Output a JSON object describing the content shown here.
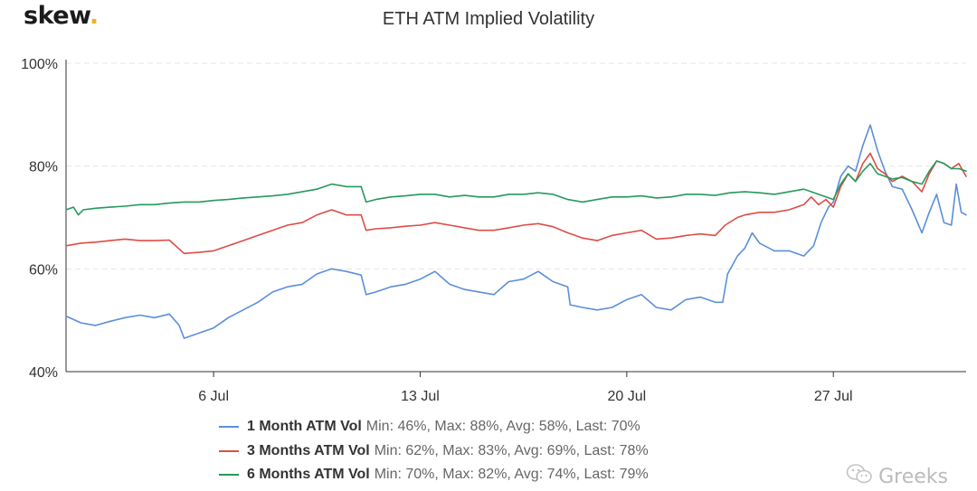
{
  "logo": {
    "text": "skew",
    "dot": "."
  },
  "watermark": {
    "text": "Greeks",
    "icon": "wechat-icon"
  },
  "colors": {
    "1m": "#5b8fd9",
    "3m": "#dd4d44",
    "6m": "#259a5b",
    "grid": "#e6e6e6",
    "axis": "#333333",
    "logo_dot": "#f0b323"
  },
  "chart_data": {
    "type": "line",
    "title": "ETH ATM Implied Volatility",
    "xlabel": "",
    "ylabel": "",
    "x_range": [
      "2020-07-01",
      "2020-07-31"
    ],
    "ylim": [
      40,
      100
    ],
    "yticks": [
      "40%",
      "60%",
      "80%",
      "100%"
    ],
    "xticks": [
      {
        "date": "2020-07-06",
        "label": "6 Jul"
      },
      {
        "date": "2020-07-13",
        "label": "13 Jul"
      },
      {
        "date": "2020-07-20",
        "label": "20 Jul"
      },
      {
        "date": "2020-07-27",
        "label": "27 Jul"
      }
    ],
    "grid": "horizontal-dashed",
    "legend_position": "bottom",
    "series": [
      {
        "key": "1m",
        "name": "1 Month ATM Vol",
        "stats": "Min: 46%, Max: 88%, Avg: 58%, Last: 70%",
        "points": [
          [
            "2020-07-01",
            50.8
          ],
          [
            "2020-07-01T12:00",
            49.5
          ],
          [
            "2020-07-02",
            49.0
          ],
          [
            "2020-07-02T12:00",
            49.8
          ],
          [
            "2020-07-03",
            50.5
          ],
          [
            "2020-07-03T12:00",
            51.0
          ],
          [
            "2020-07-04",
            50.5
          ],
          [
            "2020-07-04T12:00",
            51.2
          ],
          [
            "2020-07-04T20:00",
            49.0
          ],
          [
            "2020-07-05",
            46.5
          ],
          [
            "2020-07-05T12:00",
            47.5
          ],
          [
            "2020-07-06",
            48.5
          ],
          [
            "2020-07-06T12:00",
            50.5
          ],
          [
            "2020-07-07",
            52.0
          ],
          [
            "2020-07-07T12:00",
            53.5
          ],
          [
            "2020-07-08",
            55.5
          ],
          [
            "2020-07-08T12:00",
            56.5
          ],
          [
            "2020-07-09",
            57.0
          ],
          [
            "2020-07-09T12:00",
            59.0
          ],
          [
            "2020-07-10",
            60.0
          ],
          [
            "2020-07-10T12:00",
            59.5
          ],
          [
            "2020-07-11",
            58.8
          ],
          [
            "2020-07-11T04:00",
            55.0
          ],
          [
            "2020-07-11T12:00",
            55.5
          ],
          [
            "2020-07-12",
            56.5
          ],
          [
            "2020-07-12T12:00",
            57.0
          ],
          [
            "2020-07-13",
            58.0
          ],
          [
            "2020-07-13T12:00",
            59.5
          ],
          [
            "2020-07-14",
            57.0
          ],
          [
            "2020-07-14T12:00",
            56.0
          ],
          [
            "2020-07-15",
            55.5
          ],
          [
            "2020-07-15T12:00",
            55.0
          ],
          [
            "2020-07-16",
            57.5
          ],
          [
            "2020-07-16T12:00",
            58.0
          ],
          [
            "2020-07-17",
            59.5
          ],
          [
            "2020-07-17T12:00",
            57.5
          ],
          [
            "2020-07-18",
            56.5
          ],
          [
            "2020-07-18T02:00",
            53.0
          ],
          [
            "2020-07-18T12:00",
            52.5
          ],
          [
            "2020-07-19",
            52.0
          ],
          [
            "2020-07-19T12:00",
            52.5
          ],
          [
            "2020-07-20",
            54.0
          ],
          [
            "2020-07-20T12:00",
            55.0
          ],
          [
            "2020-07-21",
            52.5
          ],
          [
            "2020-07-21T12:00",
            52.0
          ],
          [
            "2020-07-22",
            54.0
          ],
          [
            "2020-07-22T12:00",
            54.5
          ],
          [
            "2020-07-23",
            53.5
          ],
          [
            "2020-07-23T06:00",
            53.5
          ],
          [
            "2020-07-23T10:00",
            59.0
          ],
          [
            "2020-07-23T18:00",
            62.5
          ],
          [
            "2020-07-24",
            64.0
          ],
          [
            "2020-07-24T06:00",
            67.0
          ],
          [
            "2020-07-24T12:00",
            65.0
          ],
          [
            "2020-07-25",
            63.5
          ],
          [
            "2020-07-25T12:00",
            63.5
          ],
          [
            "2020-07-26",
            62.5
          ],
          [
            "2020-07-26T08:00",
            64.5
          ],
          [
            "2020-07-26T14:00",
            69.0
          ],
          [
            "2020-07-26T20:00",
            72.0
          ],
          [
            "2020-07-27",
            73.0
          ],
          [
            "2020-07-27T06:00",
            78.0
          ],
          [
            "2020-07-27T12:00",
            80.0
          ],
          [
            "2020-07-27T18:00",
            79.0
          ],
          [
            "2020-07-28",
            84.0
          ],
          [
            "2020-07-28T06:00",
            88.0
          ],
          [
            "2020-07-28T12:00",
            83.0
          ],
          [
            "2020-07-28T18:00",
            79.0
          ],
          [
            "2020-07-29",
            76.0
          ],
          [
            "2020-07-29T08:00",
            75.5
          ],
          [
            "2020-07-29T16:00",
            71.5
          ],
          [
            "2020-07-30",
            67.0
          ],
          [
            "2020-07-30T06:00",
            71.0
          ],
          [
            "2020-07-30T12:00",
            74.5
          ],
          [
            "2020-07-30T18:00",
            69.0
          ],
          [
            "2020-07-31",
            68.5
          ],
          [
            "2020-07-31T04:00",
            76.5
          ],
          [
            "2020-07-31T08:00",
            71.0
          ],
          [
            "2020-07-31T12:00",
            70.5
          ]
        ]
      },
      {
        "key": "3m",
        "name": "3 Months ATM Vol",
        "stats": "Min: 62%, Max: 83%, Avg: 69%, Last: 78%",
        "points": [
          [
            "2020-07-01",
            64.5
          ],
          [
            "2020-07-01T12:00",
            65.0
          ],
          [
            "2020-07-02",
            65.2
          ],
          [
            "2020-07-02T12:00",
            65.5
          ],
          [
            "2020-07-03",
            65.8
          ],
          [
            "2020-07-03T12:00",
            65.5
          ],
          [
            "2020-07-04",
            65.5
          ],
          [
            "2020-07-04T12:00",
            65.6
          ],
          [
            "2020-07-05",
            63.0
          ],
          [
            "2020-07-05T12:00",
            63.2
          ],
          [
            "2020-07-06",
            63.5
          ],
          [
            "2020-07-06T12:00",
            64.5
          ],
          [
            "2020-07-07",
            65.5
          ],
          [
            "2020-07-07T12:00",
            66.5
          ],
          [
            "2020-07-08",
            67.5
          ],
          [
            "2020-07-08T12:00",
            68.5
          ],
          [
            "2020-07-09",
            69.0
          ],
          [
            "2020-07-09T12:00",
            70.5
          ],
          [
            "2020-07-10",
            71.5
          ],
          [
            "2020-07-10T12:00",
            70.5
          ],
          [
            "2020-07-11",
            70.5
          ],
          [
            "2020-07-11T04:00",
            67.5
          ],
          [
            "2020-07-11T12:00",
            67.8
          ],
          [
            "2020-07-12",
            68.0
          ],
          [
            "2020-07-12T12:00",
            68.3
          ],
          [
            "2020-07-13",
            68.5
          ],
          [
            "2020-07-13T12:00",
            69.0
          ],
          [
            "2020-07-14",
            68.5
          ],
          [
            "2020-07-14T12:00",
            68.0
          ],
          [
            "2020-07-15",
            67.5
          ],
          [
            "2020-07-15T12:00",
            67.5
          ],
          [
            "2020-07-16",
            68.0
          ],
          [
            "2020-07-16T12:00",
            68.5
          ],
          [
            "2020-07-17",
            68.8
          ],
          [
            "2020-07-17T12:00",
            68.2
          ],
          [
            "2020-07-18",
            67.0
          ],
          [
            "2020-07-18T12:00",
            66.0
          ],
          [
            "2020-07-19",
            65.5
          ],
          [
            "2020-07-19T12:00",
            66.5
          ],
          [
            "2020-07-20",
            67.0
          ],
          [
            "2020-07-20T12:00",
            67.5
          ],
          [
            "2020-07-21",
            65.8
          ],
          [
            "2020-07-21T12:00",
            66.0
          ],
          [
            "2020-07-22",
            66.5
          ],
          [
            "2020-07-22T12:00",
            66.8
          ],
          [
            "2020-07-23",
            66.5
          ],
          [
            "2020-07-23T08:00",
            68.5
          ],
          [
            "2020-07-23T18:00",
            70.0
          ],
          [
            "2020-07-24",
            70.5
          ],
          [
            "2020-07-24T12:00",
            71.0
          ],
          [
            "2020-07-25",
            71.0
          ],
          [
            "2020-07-25T12:00",
            71.5
          ],
          [
            "2020-07-26",
            72.5
          ],
          [
            "2020-07-26T06:00",
            74.0
          ],
          [
            "2020-07-26T12:00",
            72.5
          ],
          [
            "2020-07-26T18:00",
            73.5
          ],
          [
            "2020-07-27",
            72.0
          ],
          [
            "2020-07-27T06:00",
            76.0
          ],
          [
            "2020-07-27T12:00",
            78.5
          ],
          [
            "2020-07-27T18:00",
            77.0
          ],
          [
            "2020-07-28",
            80.5
          ],
          [
            "2020-07-28T06:00",
            82.5
          ],
          [
            "2020-07-28T12:00",
            79.5
          ],
          [
            "2020-07-28T18:00",
            78.5
          ],
          [
            "2020-07-29",
            77.0
          ],
          [
            "2020-07-29T08:00",
            78.0
          ],
          [
            "2020-07-29T16:00",
            77.0
          ],
          [
            "2020-07-30",
            75.0
          ],
          [
            "2020-07-30T06:00",
            78.5
          ],
          [
            "2020-07-30T12:00",
            81.0
          ],
          [
            "2020-07-30T18:00",
            80.5
          ],
          [
            "2020-07-31",
            79.5
          ],
          [
            "2020-07-31T06:00",
            80.5
          ],
          [
            "2020-07-31T12:00",
            78.0
          ]
        ]
      },
      {
        "key": "6m",
        "name": "6 Months ATM Vol",
        "stats": "Min: 70%, Max: 82%, Avg: 74%, Last: 79%",
        "points": [
          [
            "2020-07-01",
            71.5
          ],
          [
            "2020-07-01T06:00",
            72.0
          ],
          [
            "2020-07-01T10:00",
            70.5
          ],
          [
            "2020-07-01T14:00",
            71.5
          ],
          [
            "2020-07-02",
            71.8
          ],
          [
            "2020-07-02T12:00",
            72.0
          ],
          [
            "2020-07-03",
            72.2
          ],
          [
            "2020-07-03T12:00",
            72.5
          ],
          [
            "2020-07-04",
            72.5
          ],
          [
            "2020-07-04T12:00",
            72.8
          ],
          [
            "2020-07-05",
            73.0
          ],
          [
            "2020-07-05T12:00",
            73.0
          ],
          [
            "2020-07-06",
            73.3
          ],
          [
            "2020-07-06T12:00",
            73.5
          ],
          [
            "2020-07-07",
            73.8
          ],
          [
            "2020-07-07T12:00",
            74.0
          ],
          [
            "2020-07-08",
            74.2
          ],
          [
            "2020-07-08T12:00",
            74.5
          ],
          [
            "2020-07-09",
            75.0
          ],
          [
            "2020-07-09T12:00",
            75.5
          ],
          [
            "2020-07-10",
            76.5
          ],
          [
            "2020-07-10T12:00",
            76.0
          ],
          [
            "2020-07-11",
            76.0
          ],
          [
            "2020-07-11T04:00",
            73.0
          ],
          [
            "2020-07-11T12:00",
            73.5
          ],
          [
            "2020-07-12",
            74.0
          ],
          [
            "2020-07-12T12:00",
            74.2
          ],
          [
            "2020-07-13",
            74.5
          ],
          [
            "2020-07-13T12:00",
            74.5
          ],
          [
            "2020-07-14",
            74.0
          ],
          [
            "2020-07-14T12:00",
            74.3
          ],
          [
            "2020-07-15",
            74.0
          ],
          [
            "2020-07-15T12:00",
            74.0
          ],
          [
            "2020-07-16",
            74.5
          ],
          [
            "2020-07-16T12:00",
            74.5
          ],
          [
            "2020-07-17",
            74.8
          ],
          [
            "2020-07-17T12:00",
            74.5
          ],
          [
            "2020-07-18",
            73.5
          ],
          [
            "2020-07-18T12:00",
            73.0
          ],
          [
            "2020-07-19",
            73.5
          ],
          [
            "2020-07-19T12:00",
            74.0
          ],
          [
            "2020-07-20",
            74.0
          ],
          [
            "2020-07-20T12:00",
            74.2
          ],
          [
            "2020-07-21",
            73.8
          ],
          [
            "2020-07-21T12:00",
            74.0
          ],
          [
            "2020-07-22",
            74.5
          ],
          [
            "2020-07-22T12:00",
            74.5
          ],
          [
            "2020-07-23",
            74.3
          ],
          [
            "2020-07-23T12:00",
            74.8
          ],
          [
            "2020-07-24",
            75.0
          ],
          [
            "2020-07-24T12:00",
            74.8
          ],
          [
            "2020-07-25",
            74.5
          ],
          [
            "2020-07-25T12:00",
            75.0
          ],
          [
            "2020-07-26",
            75.5
          ],
          [
            "2020-07-26T12:00",
            74.5
          ],
          [
            "2020-07-27",
            73.5
          ],
          [
            "2020-07-27T06:00",
            76.5
          ],
          [
            "2020-07-27T12:00",
            78.5
          ],
          [
            "2020-07-27T18:00",
            77.0
          ],
          [
            "2020-07-28",
            79.0
          ],
          [
            "2020-07-28T06:00",
            80.5
          ],
          [
            "2020-07-28T12:00",
            78.5
          ],
          [
            "2020-07-28T18:00",
            78.0
          ],
          [
            "2020-07-29",
            77.5
          ],
          [
            "2020-07-29T08:00",
            77.8
          ],
          [
            "2020-07-29T16:00",
            77.0
          ],
          [
            "2020-07-30",
            76.5
          ],
          [
            "2020-07-30T06:00",
            79.0
          ],
          [
            "2020-07-30T12:00",
            81.0
          ],
          [
            "2020-07-30T18:00",
            80.5
          ],
          [
            "2020-07-31",
            79.5
          ],
          [
            "2020-07-31T06:00",
            79.5
          ],
          [
            "2020-07-31T12:00",
            79.0
          ]
        ]
      }
    ]
  }
}
